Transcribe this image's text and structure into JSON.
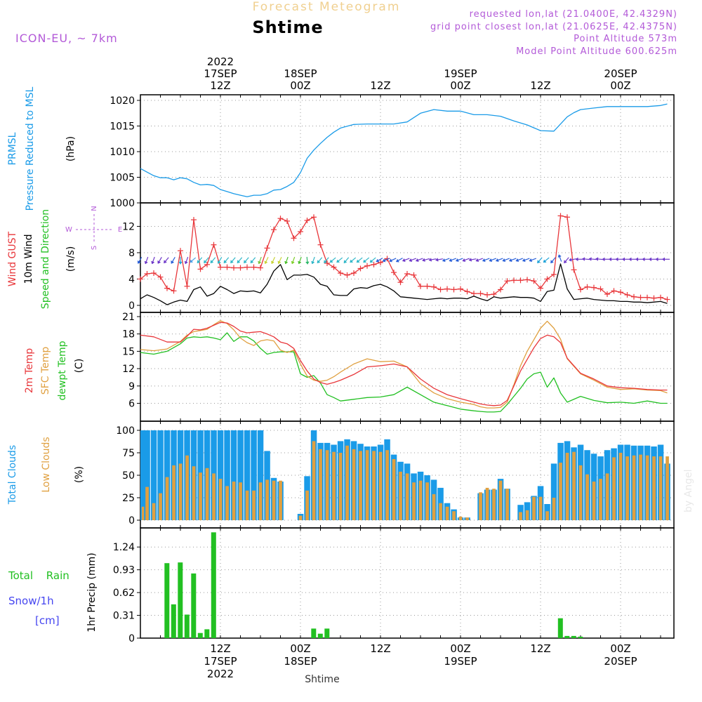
{
  "header": {
    "title": "Forecast Meteogram",
    "location": "Shtime",
    "model": "ICON-EU, ~ 7km",
    "requested": "requested lon,lat (21.0400E, 42.4329N)",
    "gridpoint": "grid point closest lon,lat (21.0625E, 42.4375N)",
    "point_alt": "Point Altitude 573m",
    "model_alt": "Model Point Altitude 600.625m",
    "credit": "by Angel",
    "footer": "Shtime"
  },
  "time_axis": {
    "start_hour": 0,
    "end_hour": 80,
    "top_labels": [
      {
        "hour": 12,
        "lines": [
          "2022",
          "17SEP",
          "12Z"
        ]
      },
      {
        "hour": 24,
        "lines": [
          "18SEP",
          "00Z"
        ]
      },
      {
        "hour": 36,
        "lines": [
          "12Z"
        ]
      },
      {
        "hour": 48,
        "lines": [
          "19SEP",
          "00Z"
        ]
      },
      {
        "hour": 60,
        "lines": [
          "12Z"
        ]
      },
      {
        "hour": 72,
        "lines": [
          "20SEP",
          "00Z"
        ]
      }
    ],
    "bottom_labels": [
      {
        "hour": 12,
        "lines": [
          "12Z",
          "17SEP",
          "2022"
        ]
      },
      {
        "hour": 24,
        "lines": [
          "00Z",
          "18SEP"
        ]
      },
      {
        "hour": 36,
        "lines": [
          "12Z"
        ]
      },
      {
        "hour": 48,
        "lines": [
          "00Z",
          "19SEP"
        ]
      },
      {
        "hour": 60,
        "lines": [
          "12Z"
        ]
      },
      {
        "hour": 72,
        "lines": [
          "00Z",
          "20SEP"
        ]
      }
    ]
  },
  "colors": {
    "blue": "#1a9be8",
    "red": "#e8363a",
    "green": "#22c022",
    "orange": "#e0a040",
    "purple": "#b35ad8",
    "snowblue": "#4545f0",
    "black": "#000000"
  },
  "chart_data": [
    {
      "id": "pressure",
      "type": "line",
      "labels": [
        "PRMSL",
        "Pressure Reduced to MSL"
      ],
      "unit": "(hPa)",
      "ylim": [
        1000,
        1020
      ],
      "yticks": [
        1000,
        1005,
        1010,
        1015,
        1020
      ],
      "x": [
        0,
        1,
        2,
        3,
        4,
        5,
        6,
        7,
        8,
        9,
        10,
        11,
        12,
        13,
        14,
        15,
        16,
        17,
        18,
        19,
        20,
        21,
        22,
        23,
        24,
        25,
        26,
        27,
        28,
        29,
        30,
        32,
        34,
        36,
        38,
        40,
        42,
        44,
        46,
        48,
        50,
        52,
        54,
        56,
        58,
        60,
        62,
        64,
        65,
        66,
        68,
        70,
        72,
        74,
        76,
        78,
        79
      ],
      "values": [
        1006.7,
        1006.0,
        1005.3,
        1004.9,
        1004.9,
        1004.5,
        1004.9,
        1004.7,
        1004.0,
        1003.5,
        1003.6,
        1003.4,
        1002.6,
        1002.2,
        1001.8,
        1001.5,
        1001.2,
        1001.5,
        1001.5,
        1001.8,
        1002.5,
        1002.6,
        1003.2,
        1004.0,
        1005.9,
        1008.7,
        1010.3,
        1011.6,
        1012.8,
        1013.8,
        1014.6,
        1015.3,
        1015.4,
        1015.4,
        1015.4,
        1015.8,
        1017.5,
        1018.2,
        1017.9,
        1017.9,
        1017.2,
        1017.2,
        1016.9,
        1016.0,
        1015.2,
        1014.1,
        1014.0,
        1016.8,
        1017.6,
        1018.2,
        1018.5,
        1018.8,
        1018.8,
        1018.8,
        1018.8,
        1019.0,
        1019.3
      ]
    },
    {
      "id": "wind",
      "type": "line",
      "labels": [
        "Wind GUST",
        "10m Wind",
        "Speed and Direction"
      ],
      "unit": "(m/s)",
      "compass": {
        "n": "N",
        "s": "S",
        "w": "W",
        "e": "E"
      },
      "ylim": [
        0,
        14.5
      ],
      "yticks": [
        0,
        4,
        8,
        12
      ],
      "x": [
        0,
        1,
        2,
        3,
        4,
        5,
        6,
        7,
        8,
        9,
        10,
        11,
        12,
        13,
        14,
        15,
        16,
        17,
        18,
        19,
        20,
        21,
        22,
        23,
        24,
        25,
        26,
        27,
        28,
        29,
        30,
        31,
        32,
        33,
        34,
        35,
        36,
        37,
        38,
        39,
        40,
        41,
        42,
        43,
        44,
        45,
        46,
        47,
        48,
        49,
        50,
        51,
        52,
        53,
        54,
        55,
        56,
        57,
        58,
        59,
        60,
        61,
        62,
        63,
        64,
        65,
        66,
        67,
        68,
        69,
        70,
        71,
        72,
        73,
        74,
        75,
        76,
        77,
        78,
        79
      ],
      "gust": [
        4.0,
        4.8,
        4.9,
        4.3,
        2.6,
        2.2,
        8.3,
        2.9,
        13.0,
        5.5,
        6.2,
        9.2,
        5.8,
        5.8,
        5.7,
        5.7,
        5.8,
        5.8,
        5.7,
        8.7,
        11.5,
        13.2,
        12.8,
        10.2,
        11.2,
        12.9,
        13.4,
        9.2,
        6.4,
        5.8,
        4.9,
        4.6,
        4.9,
        5.6,
        6.0,
        6.2,
        6.5,
        7.1,
        5.0,
        3.5,
        4.8,
        4.6,
        2.9,
        2.9,
        2.8,
        2.4,
        2.5,
        2.4,
        2.5,
        2.1,
        1.8,
        1.8,
        1.6,
        1.7,
        2.4,
        3.7,
        3.8,
        3.8,
        3.9,
        3.7,
        2.6,
        4.0,
        4.7,
        13.6,
        13.4,
        5.4,
        2.4,
        2.8,
        2.7,
        2.5,
        1.7,
        2.2,
        2.0,
        1.6,
        1.3,
        1.2,
        1.2,
        1.1,
        1.2,
        0.9
      ],
      "wind": [
        1.0,
        1.6,
        1.2,
        0.7,
        0.1,
        0.5,
        0.8,
        0.6,
        2.4,
        2.8,
        1.4,
        1.8,
        2.9,
        2.4,
        1.8,
        2.2,
        2.1,
        2.2,
        1.9,
        3.2,
        5.2,
        6.2,
        3.9,
        4.6,
        4.6,
        4.7,
        4.3,
        3.2,
        2.9,
        1.6,
        1.5,
        1.5,
        2.5,
        2.7,
        2.6,
        3.0,
        3.2,
        2.8,
        2.2,
        1.3,
        1.2,
        1.1,
        1.0,
        0.9,
        1.0,
        1.1,
        1.0,
        1.1,
        1.1,
        1.0,
        1.4,
        1.0,
        0.7,
        1.3,
        1.1,
        1.2,
        1.3,
        1.2,
        1.2,
        1.1,
        0.6,
        2.1,
        2.3,
        6.3,
        2.5,
        0.9,
        1.0,
        1.1,
        0.9,
        0.8,
        0.7,
        0.7,
        0.6,
        0.6,
        0.5,
        0.5,
        0.4,
        0.5,
        0.6,
        0.3
      ],
      "arrows_y_ms": 7.0,
      "arrow_colors": [
        "#2a5fd8",
        "#6d37c9",
        "#6d37c9",
        "#6d37c9",
        "#6d37c9",
        "#2a5fd8",
        "#1fa3d8",
        "#6d37c9",
        "#4aa0e8",
        "#2fb7c8",
        "#2fb7c8",
        "#2fb7c8",
        "#2fb7c8",
        "#2fb7c8",
        "#2fb7c8",
        "#2fb7c8",
        "#2fb7c8",
        "#2fb7c8",
        "#7ac53a",
        "#c8d438",
        "#c8d438",
        "#c8d438",
        "#4bbf2c",
        "#7fd02a",
        "#4bbf2c",
        "#2ab768",
        "#2fb7c8",
        "#2fb7c8",
        "#2fb7c8",
        "#2fb7c8",
        "#2fb7c8",
        "#2fb7c8",
        "#2fb7c8",
        "#2fb7c8",
        "#2fb7c8",
        "#2fb7c8",
        "#2a5fd8",
        "#2a5fd8",
        "#2a5fd8",
        "#2a5fd8",
        "#6d37c9",
        "#6d37c9",
        "#6d37c9",
        "#6d37c9",
        "#6d37c9",
        "#6d37c9",
        "#2a5fd8",
        "#2a5fd8",
        "#2a5fd8",
        "#6d37c9",
        "#6d37c9",
        "#6d37c9",
        "#2a5fd8",
        "#2a5fd8",
        "#2a5fd8",
        "#2a5fd8",
        "#2a5fd8",
        "#2a5fd8",
        "#2a5fd8",
        "#2a5fd8",
        "#1fa3d8",
        "#1fa3d8",
        "#2a5fd8",
        "#2a5fd8",
        "#6d37c9",
        "#6d37c9",
        "#6d37c9",
        "#6d37c9",
        "#6d37c9",
        "#6d37c9",
        "#6d37c9",
        "#6d37c9",
        "#6d37c9",
        "#6d37c9",
        "#6d37c9",
        "#6d37c9",
        "#6d37c9",
        "#6d37c9",
        "#6d37c9",
        "#6d37c9"
      ],
      "arrow_dirs": [
        210,
        200,
        200,
        210,
        220,
        210,
        180,
        200,
        230,
        220,
        220,
        220,
        210,
        220,
        220,
        220,
        220,
        220,
        200,
        205,
        205,
        205,
        200,
        200,
        200,
        175,
        200,
        220,
        220,
        230,
        230,
        220,
        230,
        230,
        230,
        230,
        240,
        245,
        245,
        240,
        250,
        250,
        250,
        255,
        260,
        260,
        250,
        250,
        250,
        250,
        260,
        250,
        250,
        250,
        250,
        250,
        250,
        250,
        250,
        250,
        220,
        230,
        220,
        340,
        220,
        260,
        270,
        275,
        275,
        275,
        270,
        270,
        270,
        270,
        270,
        270,
        270,
        270,
        270,
        270
      ]
    },
    {
      "id": "temperature",
      "type": "line",
      "labels": [
        "2m Temp",
        "SFC Temp",
        "dewpt Temp"
      ],
      "unit": "(C)",
      "ylim": [
        4,
        21
      ],
      "yticks": [
        6,
        9,
        12,
        15,
        18,
        21
      ],
      "x": [
        0,
        2,
        4,
        6,
        7,
        8,
        9,
        10,
        11,
        12,
        13,
        14,
        15,
        16,
        17,
        18,
        19,
        20,
        21,
        22,
        23,
        24,
        25,
        26,
        27,
        28,
        29,
        30,
        32,
        34,
        36,
        38,
        40,
        42,
        44,
        46,
        48,
        50,
        51,
        52,
        53,
        54,
        55,
        56,
        57,
        58,
        59,
        60,
        61,
        62,
        63,
        64,
        66,
        68,
        70,
        72,
        74,
        76,
        78,
        79
      ],
      "t2m": [
        17.8,
        17.5,
        16.6,
        16.6,
        17.6,
        18.8,
        18.7,
        19.0,
        19.5,
        20.0,
        19.9,
        19.3,
        18.5,
        18.2,
        18.3,
        18.4,
        18.0,
        17.5,
        16.6,
        16.3,
        15.5,
        13.4,
        11.6,
        10.2,
        9.6,
        9.3,
        9.6,
        10.0,
        11.0,
        12.3,
        12.5,
        12.8,
        12.3,
        10.2,
        8.6,
        7.5,
        6.8,
        6.2,
        5.9,
        5.7,
        5.6,
        5.7,
        6.5,
        9.0,
        11.6,
        13.6,
        15.6,
        17.2,
        17.8,
        17.5,
        16.5,
        13.8,
        11.2,
        10.2,
        9.0,
        8.7,
        8.6,
        8.4,
        8.3,
        8.3
      ],
      "sfc": [
        15.3,
        15.1,
        15.4,
        16.7,
        17.8,
        18.4,
        18.6,
        18.8,
        19.6,
        20.3,
        19.8,
        18.7,
        17.3,
        16.5,
        16.0,
        16.8,
        17.0,
        16.8,
        15.2,
        14.8,
        15.2,
        12.8,
        10.7,
        10.0,
        9.8,
        10.0,
        10.6,
        11.4,
        12.8,
        13.7,
        13.2,
        13.3,
        12.3,
        9.4,
        7.8,
        6.8,
        6.2,
        5.8,
        5.4,
        5.2,
        5.2,
        5.3,
        6.2,
        9.2,
        12.5,
        15.0,
        17.0,
        19.0,
        20.2,
        19.0,
        17.1,
        13.7,
        11.1,
        10.0,
        8.8,
        8.4,
        8.5,
        8.3,
        8.2,
        7.8
      ],
      "dewpt": [
        14.8,
        14.5,
        15.0,
        16.3,
        17.3,
        17.5,
        17.4,
        17.5,
        17.3,
        17.0,
        18.2,
        16.7,
        17.5,
        17.5,
        16.8,
        15.5,
        14.5,
        14.8,
        14.9,
        14.9,
        14.9,
        11.1,
        10.5,
        10.8,
        9.5,
        7.5,
        7.0,
        6.4,
        6.7,
        7.0,
        7.1,
        7.5,
        8.8,
        7.5,
        6.2,
        5.6,
        5.0,
        4.7,
        4.6,
        4.5,
        4.5,
        4.6,
        5.8,
        7.2,
        8.6,
        10.2,
        11.1,
        11.4,
        8.8,
        10.4,
        7.8,
        6.2,
        7.2,
        6.5,
        6.1,
        6.2,
        6.0,
        6.4,
        6.0,
        6.0
      ]
    },
    {
      "id": "clouds",
      "type": "bar",
      "labels": [
        "Total Clouds",
        "Low Clouds"
      ],
      "unit": "(%)",
      "ylim": [
        0,
        100
      ],
      "yticks": [
        0,
        25,
        50,
        75,
        100
      ],
      "x": [
        0,
        1,
        2,
        3,
        4,
        5,
        6,
        7,
        8,
        9,
        10,
        11,
        12,
        13,
        14,
        15,
        16,
        17,
        18,
        19,
        20,
        21,
        22,
        23,
        24,
        25,
        26,
        27,
        28,
        29,
        30,
        31,
        32,
        33,
        34,
        35,
        36,
        37,
        38,
        39,
        40,
        41,
        42,
        43,
        44,
        45,
        46,
        47,
        48,
        49,
        50,
        51,
        52,
        53,
        54,
        55,
        56,
        57,
        58,
        59,
        60,
        61,
        62,
        63,
        64,
        65,
        66,
        67,
        68,
        69,
        70,
        71,
        72,
        73,
        74,
        75,
        76,
        77,
        78,
        79
      ],
      "total": [
        100,
        100,
        100,
        100,
        100,
        100,
        100,
        100,
        100,
        100,
        100,
        100,
        100,
        100,
        100,
        100,
        100,
        100,
        100,
        77,
        47,
        43,
        0,
        0,
        7,
        49,
        100,
        86,
        86,
        84,
        88,
        90,
        88,
        85,
        82,
        82,
        84,
        90,
        73,
        65,
        63,
        52,
        54,
        50,
        45,
        36,
        19,
        12,
        3,
        3,
        0,
        30,
        34,
        34,
        46,
        35,
        0,
        17,
        20,
        27,
        38,
        18,
        63,
        86,
        88,
        81,
        84,
        78,
        74,
        71,
        78,
        80,
        84,
        84,
        83,
        83,
        83,
        82,
        84,
        63
      ],
      "low": [
        15,
        37,
        19,
        30,
        48,
        61,
        63,
        72,
        60,
        53,
        58,
        52,
        46,
        38,
        43,
        42,
        33,
        33,
        42,
        45,
        44,
        44,
        0,
        0,
        5,
        33,
        88,
        79,
        78,
        76,
        75,
        83,
        79,
        77,
        78,
        77,
        76,
        78,
        68,
        54,
        52,
        42,
        44,
        42,
        29,
        19,
        15,
        10,
        4,
        3,
        0,
        31,
        36,
        35,
        44,
        35,
        0,
        9,
        11,
        26,
        26,
        10,
        25,
        64,
        75,
        76,
        61,
        51,
        43,
        46,
        52,
        70,
        75,
        71,
        72,
        73,
        72,
        71,
        71,
        71
      ]
    },
    {
      "id": "precip",
      "type": "bar",
      "labels": [
        "Total Rain",
        "Snow/1h",
        "[cm]"
      ],
      "unit": "1hr Precip (mm)",
      "ylim": [
        0,
        1.5
      ],
      "yticks": [
        0,
        0.31,
        0.62,
        0.93,
        1.24
      ],
      "x": [
        0,
        1,
        2,
        3,
        4,
        5,
        6,
        7,
        8,
        9,
        10,
        11,
        12,
        13,
        14,
        15,
        16,
        17,
        18,
        19,
        20,
        21,
        22,
        23,
        24,
        25,
        26,
        27,
        28,
        29,
        30,
        31,
        32,
        33,
        34,
        35,
        36,
        37,
        38,
        39,
        40,
        41,
        42,
        43,
        44,
        45,
        46,
        47,
        48,
        49,
        50,
        51,
        52,
        53,
        54,
        55,
        56,
        57,
        58,
        59,
        60,
        61,
        62,
        63,
        64,
        65,
        66,
        67,
        68,
        69,
        70,
        71,
        72,
        73,
        74,
        75,
        76,
        77,
        78,
        79
      ],
      "values": [
        0,
        0,
        0,
        0,
        1.02,
        0.46,
        1.03,
        0.32,
        0.88,
        0.07,
        0.12,
        1.44,
        0,
        0,
        0,
        0,
        0,
        0,
        0,
        0,
        0,
        0,
        0,
        0,
        0,
        0,
        0.13,
        0.06,
        0.13,
        0,
        0,
        0,
        0,
        0,
        0,
        0,
        0,
        0,
        0,
        0,
        0,
        0,
        0,
        0,
        0,
        0,
        0,
        0,
        0,
        0,
        0,
        0,
        0,
        0,
        0,
        0,
        0,
        0,
        0,
        0,
        0,
        0,
        0,
        0.27,
        0.03,
        0.03,
        0.02,
        0,
        0,
        0,
        0,
        0,
        0,
        0,
        0,
        0,
        0,
        0,
        0,
        0
      ]
    }
  ]
}
